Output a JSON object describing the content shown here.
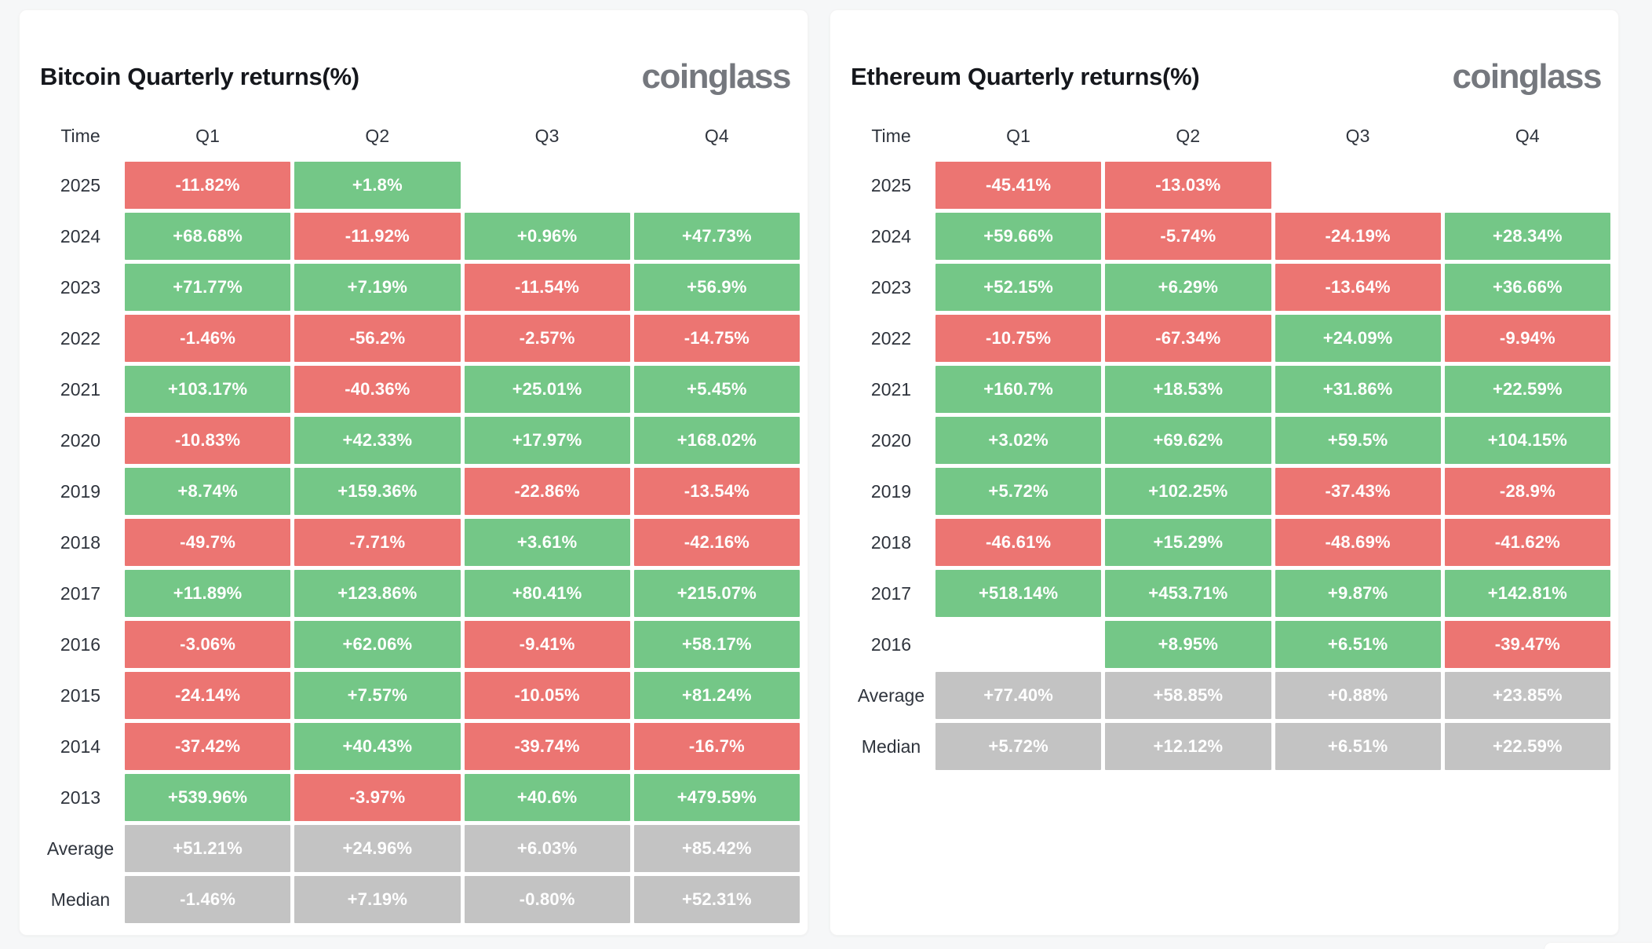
{
  "page": {
    "background_color": "#f6f7f8",
    "card_color": "#ffffff"
  },
  "colors": {
    "positive_green": "#74c787",
    "negative_red": "#ec7572",
    "summary_gray": "#c3c3c3",
    "title_text": "#15171c",
    "label_text": "#2f343d",
    "logo_gray": "#75787e"
  },
  "tables": [
    {
      "title": "Bitcoin Quarterly returns(%)",
      "logo_text": "coinglass",
      "columns": [
        "Time",
        "Q1",
        "Q2",
        "Q3",
        "Q4"
      ],
      "rows": [
        {
          "label": "2025",
          "kind": "year",
          "values": [
            "-11.82%",
            "+1.8%",
            "",
            ""
          ]
        },
        {
          "label": "2024",
          "kind": "year",
          "values": [
            "+68.68%",
            "-11.92%",
            "+0.96%",
            "+47.73%"
          ]
        },
        {
          "label": "2023",
          "kind": "year",
          "values": [
            "+71.77%",
            "+7.19%",
            "-11.54%",
            "+56.9%"
          ]
        },
        {
          "label": "2022",
          "kind": "year",
          "values": [
            "-1.46%",
            "-56.2%",
            "-2.57%",
            "-14.75%"
          ]
        },
        {
          "label": "2021",
          "kind": "year",
          "values": [
            "+103.17%",
            "-40.36%",
            "+25.01%",
            "+5.45%"
          ]
        },
        {
          "label": "2020",
          "kind": "year",
          "values": [
            "-10.83%",
            "+42.33%",
            "+17.97%",
            "+168.02%"
          ]
        },
        {
          "label": "2019",
          "kind": "year",
          "values": [
            "+8.74%",
            "+159.36%",
            "-22.86%",
            "-13.54%"
          ]
        },
        {
          "label": "2018",
          "kind": "year",
          "values": [
            "-49.7%",
            "-7.71%",
            "+3.61%",
            "-42.16%"
          ]
        },
        {
          "label": "2017",
          "kind": "year",
          "values": [
            "+11.89%",
            "+123.86%",
            "+80.41%",
            "+215.07%"
          ]
        },
        {
          "label": "2016",
          "kind": "year",
          "values": [
            "-3.06%",
            "+62.06%",
            "-9.41%",
            "+58.17%"
          ]
        },
        {
          "label": "2015",
          "kind": "year",
          "values": [
            "-24.14%",
            "+7.57%",
            "-10.05%",
            "+81.24%"
          ]
        },
        {
          "label": "2014",
          "kind": "year",
          "values": [
            "-37.42%",
            "+40.43%",
            "-39.74%",
            "-16.7%"
          ]
        },
        {
          "label": "2013",
          "kind": "year",
          "values": [
            "+539.96%",
            "-3.97%",
            "+40.6%",
            "+479.59%"
          ]
        },
        {
          "label": "Average",
          "kind": "summary",
          "values": [
            "+51.21%",
            "+24.96%",
            "+6.03%",
            "+85.42%"
          ]
        },
        {
          "label": "Median",
          "kind": "summary",
          "values": [
            "-1.46%",
            "+7.19%",
            "-0.80%",
            "+52.31%"
          ]
        }
      ]
    },
    {
      "title": "Ethereum Quarterly returns(%)",
      "logo_text": "coinglass",
      "columns": [
        "Time",
        "Q1",
        "Q2",
        "Q3",
        "Q4"
      ],
      "rows": [
        {
          "label": "2025",
          "kind": "year",
          "values": [
            "-45.41%",
            "-13.03%",
            "",
            ""
          ]
        },
        {
          "label": "2024",
          "kind": "year",
          "values": [
            "+59.66%",
            "-5.74%",
            "-24.19%",
            "+28.34%"
          ]
        },
        {
          "label": "2023",
          "kind": "year",
          "values": [
            "+52.15%",
            "+6.29%",
            "-13.64%",
            "+36.66%"
          ]
        },
        {
          "label": "2022",
          "kind": "year",
          "values": [
            "-10.75%",
            "-67.34%",
            "+24.09%",
            "-9.94%"
          ]
        },
        {
          "label": "2021",
          "kind": "year",
          "values": [
            "+160.7%",
            "+18.53%",
            "+31.86%",
            "+22.59%"
          ]
        },
        {
          "label": "2020",
          "kind": "year",
          "values": [
            "+3.02%",
            "+69.62%",
            "+59.5%",
            "+104.15%"
          ]
        },
        {
          "label": "2019",
          "kind": "year",
          "values": [
            "+5.72%",
            "+102.25%",
            "-37.43%",
            "-28.9%"
          ]
        },
        {
          "label": "2018",
          "kind": "year",
          "values": [
            "-46.61%",
            "+15.29%",
            "-48.69%",
            "-41.62%"
          ]
        },
        {
          "label": "2017",
          "kind": "year",
          "values": [
            "+518.14%",
            "+453.71%",
            "+9.87%",
            "+142.81%"
          ]
        },
        {
          "label": "2016",
          "kind": "year",
          "values": [
            "",
            "+8.95%",
            "+6.51%",
            "-39.47%"
          ]
        },
        {
          "label": "Average",
          "kind": "summary",
          "values": [
            "+77.40%",
            "+58.85%",
            "+0.88%",
            "+23.85%"
          ]
        },
        {
          "label": "Median",
          "kind": "summary",
          "values": [
            "+5.72%",
            "+12.12%",
            "+6.51%",
            "+22.59%"
          ]
        }
      ]
    }
  ],
  "chart_data": [
    {
      "type": "heatmap",
      "title": "Bitcoin Quarterly returns(%)",
      "columns": [
        "Q1",
        "Q2",
        "Q3",
        "Q4"
      ],
      "rows": [
        "2025",
        "2024",
        "2023",
        "2022",
        "2021",
        "2020",
        "2019",
        "2018",
        "2017",
        "2016",
        "2015",
        "2014",
        "2013",
        "Average",
        "Median"
      ],
      "values_percent": [
        [
          -11.82,
          1.8,
          null,
          null
        ],
        [
          68.68,
          -11.92,
          0.96,
          47.73
        ],
        [
          71.77,
          7.19,
          -11.54,
          56.9
        ],
        [
          -1.46,
          -56.2,
          -2.57,
          -14.75
        ],
        [
          103.17,
          -40.36,
          25.01,
          5.45
        ],
        [
          -10.83,
          42.33,
          17.97,
          168.02
        ],
        [
          8.74,
          159.36,
          -22.86,
          -13.54
        ],
        [
          -49.7,
          -7.71,
          3.61,
          -42.16
        ],
        [
          11.89,
          123.86,
          80.41,
          215.07
        ],
        [
          -3.06,
          62.06,
          -9.41,
          58.17
        ],
        [
          -24.14,
          7.57,
          -10.05,
          81.24
        ],
        [
          -37.42,
          40.43,
          -39.74,
          -16.7
        ],
        [
          539.96,
          -3.97,
          40.6,
          479.59
        ],
        [
          51.21,
          24.96,
          6.03,
          85.42
        ],
        [
          -1.46,
          7.19,
          -0.8,
          52.31
        ]
      ],
      "color_rule": "green if positive, red if negative, gray for Average/Median rows",
      "legend": "none",
      "grid": "cell gaps white"
    },
    {
      "type": "heatmap",
      "title": "Ethereum Quarterly returns(%)",
      "columns": [
        "Q1",
        "Q2",
        "Q3",
        "Q4"
      ],
      "rows": [
        "2025",
        "2024",
        "2023",
        "2022",
        "2021",
        "2020",
        "2019",
        "2018",
        "2017",
        "2016",
        "Average",
        "Median"
      ],
      "values_percent": [
        [
          -45.41,
          -13.03,
          null,
          null
        ],
        [
          59.66,
          -5.74,
          -24.19,
          28.34
        ],
        [
          52.15,
          6.29,
          -13.64,
          36.66
        ],
        [
          -10.75,
          -67.34,
          24.09,
          -9.94
        ],
        [
          160.7,
          18.53,
          31.86,
          22.59
        ],
        [
          3.02,
          69.62,
          59.5,
          104.15
        ],
        [
          5.72,
          102.25,
          -37.43,
          -28.9
        ],
        [
          -46.61,
          15.29,
          -48.69,
          -41.62
        ],
        [
          518.14,
          453.71,
          9.87,
          142.81
        ],
        [
          null,
          8.95,
          6.51,
          -39.47
        ],
        [
          77.4,
          58.85,
          0.88,
          23.85
        ],
        [
          5.72,
          12.12,
          6.51,
          22.59
        ]
      ],
      "color_rule": "green if positive, red if negative, gray for Average/Median rows",
      "legend": "none",
      "grid": "cell gaps white"
    }
  ]
}
